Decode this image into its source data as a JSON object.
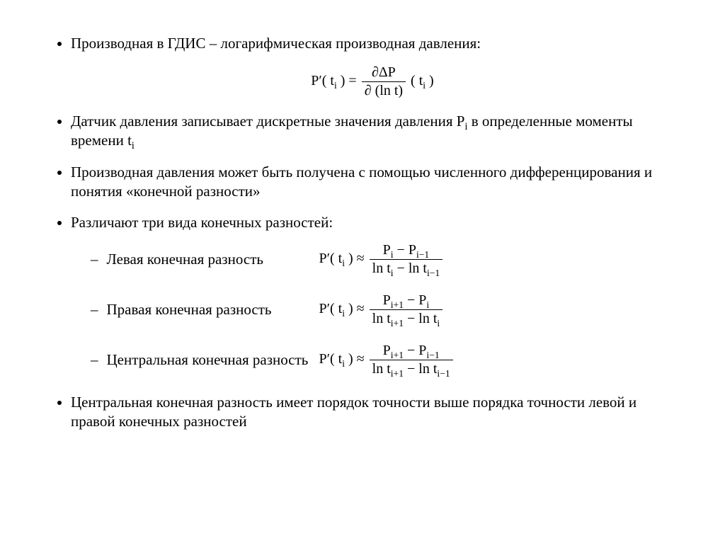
{
  "bullets": {
    "b1": "Производная в ГДИС – логарифмическая производная давления:",
    "b2_a": "Датчик давления записывает дискретные значения давления P",
    "b2_sub1": "i",
    "b2_b": " в определенные моменты времени t",
    "b2_sub2": "i",
    "b3": "Производная давления может быть получена с помощью численного дифференцирования и понятия «конечной разности»",
    "b4": "Различают три вида конечных разностей:",
    "b5": "Центральная конечная разность имеет порядок точности выше порядка точности левой и правой конечных разностей"
  },
  "subitems": {
    "s1": "Левая конечная разность",
    "s2": "Правая конечная разность",
    "s3": "Центральная конечная разность"
  },
  "formulas": {
    "main_lhs": "P′( t",
    "main_lhs_sub": "i",
    "main_lhs_end": " ) =",
    "main_num": "∂ΔP",
    "main_den": "∂ (ln t)",
    "main_rhs": "( t",
    "main_rhs_sub": "i",
    "main_rhs_end": " )",
    "lhs": "P′( t",
    "lhs_sub": "i",
    "lhs_end": " ) ≈",
    "left_num_a": "P",
    "left_num_a_sub": "i",
    "left_num_b": " − P",
    "left_num_b_sub": "i−1",
    "left_den_a": "ln t",
    "left_den_a_sub": "i",
    "left_den_b": " − ln t",
    "left_den_b_sub": "i−1",
    "right_num_a": "P",
    "right_num_a_sub": "i+1",
    "right_num_b": " − P",
    "right_num_b_sub": "i",
    "right_den_a": "ln t",
    "right_den_a_sub": "i+1",
    "right_den_b": " − ln t",
    "right_den_b_sub": "i",
    "cent_num_a": "P",
    "cent_num_a_sub": "i+1",
    "cent_num_b": " − P",
    "cent_num_b_sub": "i−1",
    "cent_den_a": "ln t",
    "cent_den_a_sub": "i+1",
    "cent_den_b": " − ln t",
    "cent_den_b_sub": "i−1"
  }
}
